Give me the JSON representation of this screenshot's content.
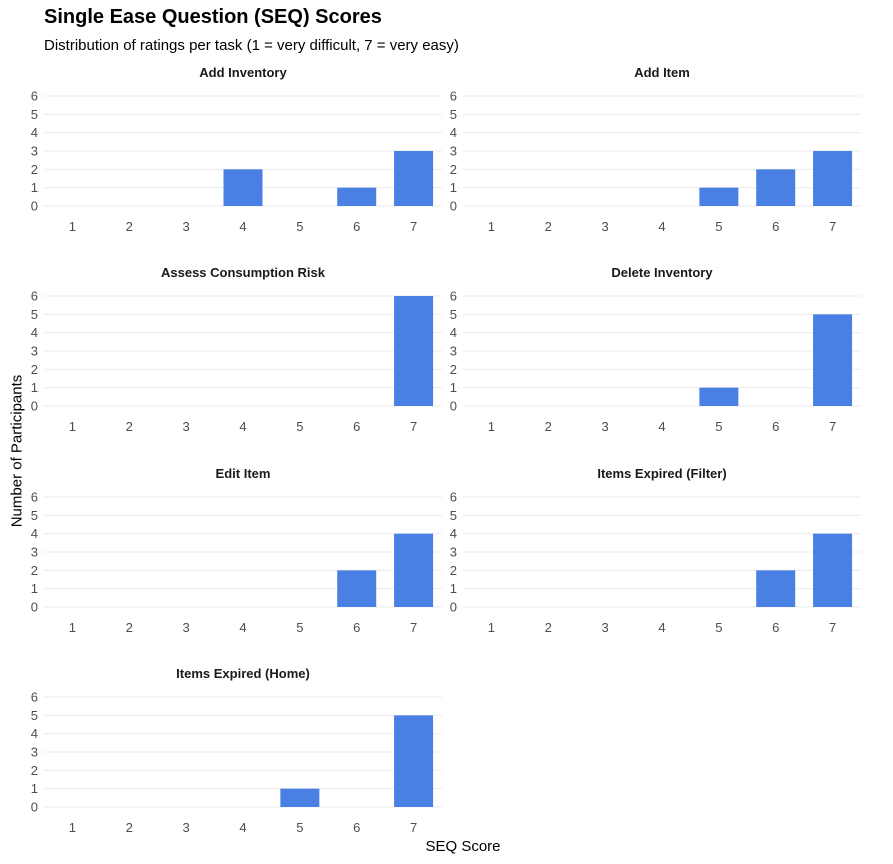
{
  "chart_data": {
    "type": "bar",
    "title": "Single Ease Question (SEQ) Scores",
    "subtitle": "Distribution of ratings per task (1 = very difficult, 7 = very easy)",
    "xlabel": "SEQ Score",
    "ylabel": "Number of Participants",
    "categories": [
      "1",
      "2",
      "3",
      "4",
      "5",
      "6",
      "7"
    ],
    "yticks": [
      "0",
      "1",
      "2",
      "3",
      "4",
      "5",
      "6"
    ],
    "ylim": [
      0,
      6
    ],
    "bar_color": "#4a80e4",
    "grid_color": "#ebebeb",
    "facets": [
      {
        "name": "Add Inventory",
        "values": [
          0,
          0,
          0,
          2,
          0,
          1,
          3
        ]
      },
      {
        "name": "Add Item",
        "values": [
          0,
          0,
          0,
          0,
          1,
          2,
          3
        ]
      },
      {
        "name": "Assess Consumption Risk",
        "values": [
          0,
          0,
          0,
          0,
          0,
          0,
          6
        ]
      },
      {
        "name": "Delete Inventory",
        "values": [
          0,
          0,
          0,
          0,
          1,
          0,
          5
        ]
      },
      {
        "name": "Edit Item",
        "values": [
          0,
          0,
          0,
          0,
          0,
          2,
          4
        ]
      },
      {
        "name": "Items Expired (Filter)",
        "values": [
          0,
          0,
          0,
          0,
          0,
          2,
          4
        ]
      },
      {
        "name": "Items Expired (Home)",
        "values": [
          0,
          0,
          0,
          0,
          1,
          0,
          5
        ]
      }
    ]
  }
}
